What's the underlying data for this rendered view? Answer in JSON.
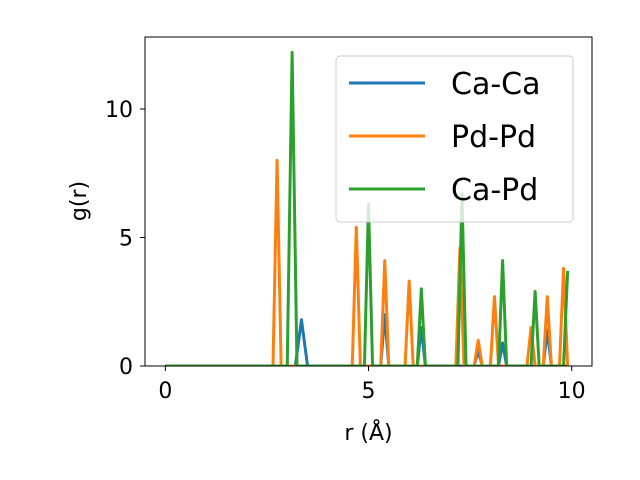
{
  "chart_data": {
    "type": "line",
    "xlabel": "r (Å)",
    "ylabel": "g(r)",
    "xlim": [
      -0.5,
      10.5
    ],
    "ylim": [
      0,
      12.8
    ],
    "xticks": [
      0,
      5,
      10
    ],
    "xtick_labels": [
      "0",
      "5",
      "10"
    ],
    "yticks": [
      0,
      5,
      10
    ],
    "ytick_labels": [
      "0",
      "5",
      "10"
    ],
    "grid": false,
    "legend_position": "top-right",
    "series": [
      {
        "name": "Ca-Ca",
        "color": "#1f77b4",
        "x": [
          0,
          3.2,
          3.35,
          3.5,
          5.3,
          5.4,
          5.5,
          6.2,
          6.3,
          6.4,
          7.6,
          7.7,
          7.8,
          8.2,
          8.3,
          8.4,
          9.3,
          9.4,
          9.5,
          9.9
        ],
        "y": [
          0,
          0,
          1.8,
          0,
          0,
          2.0,
          0,
          0,
          1.5,
          0,
          0,
          0.6,
          0,
          0,
          0.9,
          0,
          0,
          1.4,
          0,
          0
        ]
      },
      {
        "name": "Pd-Pd",
        "color": "#ff7f0e",
        "x": [
          0,
          2.65,
          2.75,
          2.85,
          4.6,
          4.7,
          4.8,
          5.3,
          5.4,
          5.5,
          5.9,
          6.0,
          6.1,
          7.15,
          7.25,
          7.35,
          7.6,
          7.7,
          7.8,
          8.0,
          8.1,
          8.2,
          8.9,
          9.0,
          9.1,
          9.3,
          9.4,
          9.5,
          9.7,
          9.8,
          9.9
        ],
        "y": [
          0,
          0,
          8.0,
          0,
          0,
          5.4,
          0,
          0,
          4.1,
          0,
          0,
          3.3,
          0,
          0,
          4.6,
          0,
          0,
          1.0,
          0,
          0,
          2.7,
          0,
          0,
          1.5,
          0,
          0,
          2.7,
          0,
          0,
          3.8,
          0
        ]
      },
      {
        "name": "Ca-Pd",
        "color": "#2ca02c",
        "x": [
          0,
          3.0,
          3.12,
          3.24,
          4.9,
          5.0,
          5.1,
          6.2,
          6.3,
          6.4,
          7.2,
          7.3,
          7.4,
          8.2,
          8.3,
          8.4,
          9.0,
          9.1,
          9.2,
          9.8,
          9.9
        ],
        "y": [
          0,
          0,
          12.2,
          0,
          0,
          6.3,
          0,
          0,
          3.0,
          0,
          0,
          6.7,
          0,
          0,
          4.1,
          0,
          0,
          2.9,
          0,
          0,
          3.7
        ]
      }
    ]
  }
}
